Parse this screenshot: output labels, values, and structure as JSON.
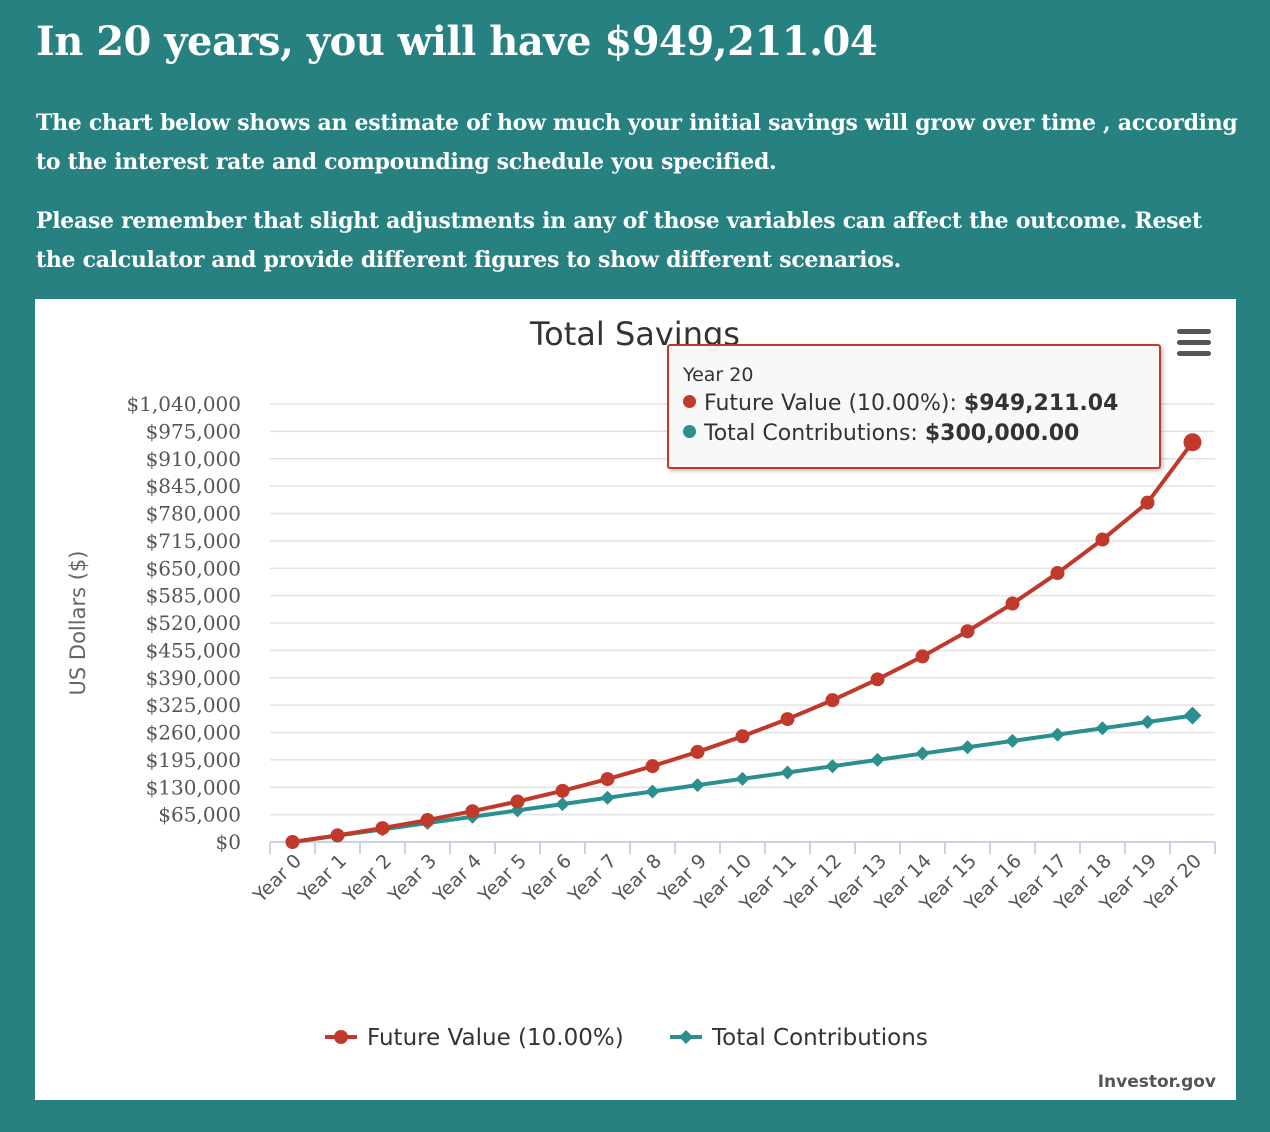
{
  "page": {
    "headline": "In 20 years, you will have $949,211.04",
    "paragraph1": "The chart below shows an estimate of how much your initial savings will grow over time , according to the interest rate and compounding schedule you specified.",
    "paragraph2": "Please remember that slight adjustments in any of those variables can affect the outcome. Reset the calculator and provide different figures to show different scenarios."
  },
  "colors": {
    "background": "#268180",
    "future_value": "#c0392b",
    "total_contributions": "#2a8f8f"
  },
  "chart_data": {
    "type": "line",
    "title": "Total Savings",
    "xlabel": "",
    "ylabel": "US Dollars ($)",
    "categories": [
      "Year 0",
      "Year 1",
      "Year 2",
      "Year 3",
      "Year 4",
      "Year 5",
      "Year 6",
      "Year 7",
      "Year 8",
      "Year 9",
      "Year 10",
      "Year 11",
      "Year 12",
      "Year 13",
      "Year 14",
      "Year 15",
      "Year 16",
      "Year 17",
      "Year 18",
      "Year 19",
      "Year 20"
    ],
    "yticks": [
      0,
      65000,
      130000,
      195000,
      260000,
      325000,
      390000,
      455000,
      520000,
      585000,
      650000,
      715000,
      780000,
      845000,
      910000,
      975000,
      1040000
    ],
    "ytick_labels": [
      "$0",
      "$65,000",
      "$130,000",
      "$195,000",
      "$260,000",
      "$325,000",
      "$390,000",
      "$455,000",
      "$520,000",
      "$585,000",
      "$650,000",
      "$715,000",
      "$780,000",
      "$845,000",
      "$910,000",
      "$975,000",
      "$1,040,000"
    ],
    "ylim": [
      0,
      1040000
    ],
    "grid": true,
    "legend": "bottom-center",
    "series": [
      {
        "name": "Future Value (10.00%)",
        "marker": "circle",
        "values": [
          0,
          15750,
          33075,
          52133,
          73096,
          96156,
          121522,
          149424,
          180117,
          213879,
          251017,
          291869,
          336806,
          386236,
          440610,
          500421,
          566213,
          638584,
          718193,
          805762,
          949211
        ]
      },
      {
        "name": "Total Contributions",
        "marker": "diamond",
        "values": [
          0,
          15000,
          30000,
          45000,
          60000,
          75000,
          90000,
          105000,
          120000,
          135000,
          150000,
          165000,
          180000,
          195000,
          210000,
          225000,
          240000,
          255000,
          270000,
          285000,
          300000
        ]
      }
    ],
    "tooltip": {
      "header": "Year 20",
      "rows": [
        {
          "label": "Future Value (10.00%): ",
          "value": "$949,211.04"
        },
        {
          "label": "Total Contributions: ",
          "value": "$300,000.00"
        }
      ]
    },
    "credits": "Investor.gov"
  }
}
